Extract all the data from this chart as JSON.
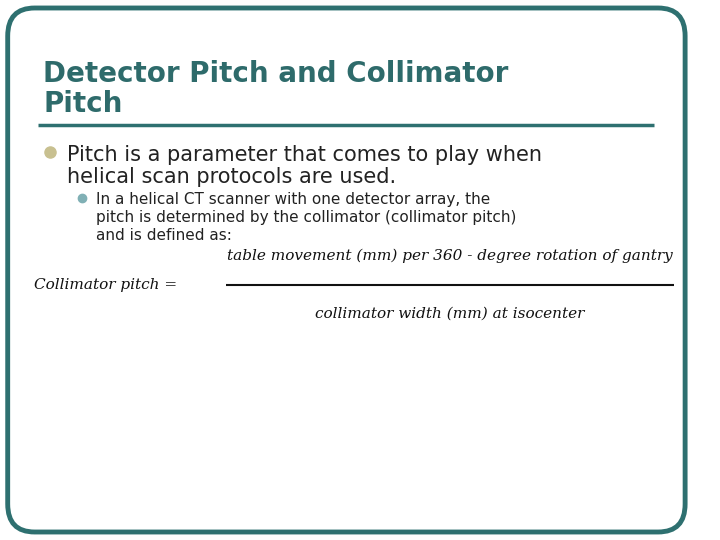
{
  "title_line1": "Detector Pitch and Collimator",
  "title_line2": "Pitch",
  "title_color": "#2e6b6b",
  "bg_color": "#ffffff",
  "border_color": "#2e7070",
  "divider_color": "#2e7070",
  "bullet1_text_line1": "Pitch is a parameter that comes to play when",
  "bullet1_text_line2": "helical scan protocols are used.",
  "bullet1_color": "#c8c090",
  "bullet2_text_line1": "In a helical CT scanner with one detector array, the",
  "bullet2_text_line2": "pitch is determined by the collimator (collimator pitch)",
  "bullet2_text_line3": "and is defined as:",
  "bullet2_color": "#80b0b5",
  "formula_left": "Collimator pitch =",
  "formula_numerator": "table movement (mm) per 360 - degree rotation of gantry",
  "formula_denominator": "collimator width (mm) at isocenter",
  "formula_color": "#111111",
  "body_text_color": "#222222",
  "title_fontsize": 20,
  "bullet1_fontsize": 15,
  "bullet2_fontsize": 11,
  "formula_fontsize": 11
}
